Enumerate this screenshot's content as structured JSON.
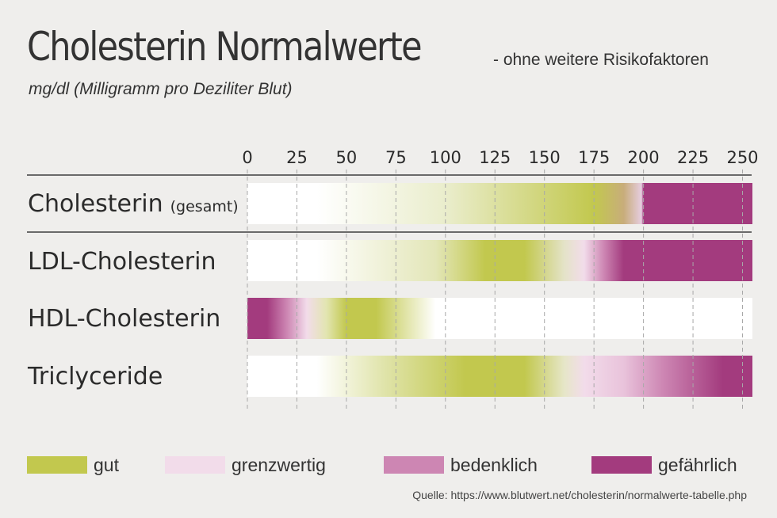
{
  "header": {
    "title": "Cholesterin Normalwerte",
    "subtitle": "- ohne weitere Risikofaktoren",
    "unit": "mg/dl (Milligramm pro Deziliter Blut)"
  },
  "colors": {
    "gut": "#c2c84e",
    "grenzwertig": "#f2dcea",
    "bedenklich": "#cd86b3",
    "gefaehrlich": "#a33b7e",
    "white": "#ffffff"
  },
  "legend": [
    {
      "label": "gut",
      "color": "#c2c84e"
    },
    {
      "label": "grenzwertig",
      "color": "#f2dcea"
    },
    {
      "label": "bedenklich",
      "color": "#cd86b3"
    },
    {
      "label": "gefährlich",
      "color": "#a33b7e"
    }
  ],
  "source": "Quelle: https://www.blutwert.net/cholesterin/normalwerte-tabelle.php",
  "chart_data": {
    "type": "bar",
    "x_ticks": [
      0,
      25,
      50,
      75,
      100,
      125,
      150,
      175,
      200,
      225,
      250
    ],
    "xlim": [
      0,
      255
    ],
    "rows": [
      {
        "label": "Cholesterin",
        "label_suffix": "(gesamt)",
        "stops": [
          [
            0,
            "#ffffff"
          ],
          [
            35,
            "#ffffff"
          ],
          [
            100,
            "#eaedcc"
          ],
          [
            175,
            "#c2c84e"
          ],
          [
            190,
            "#c8ad7a"
          ],
          [
            199,
            "#e6cde0"
          ],
          [
            200,
            "#a33b7e"
          ],
          [
            255,
            "#a33b7e"
          ]
        ]
      },
      {
        "label": "LDL-Cholesterin",
        "label_suffix": "",
        "stops": [
          [
            0,
            "#ffffff"
          ],
          [
            35,
            "#ffffff"
          ],
          [
            95,
            "#e3e6b8"
          ],
          [
            120,
            "#c2c84e"
          ],
          [
            140,
            "#c2c84e"
          ],
          [
            160,
            "#e4e3c8"
          ],
          [
            170,
            "#f2dcea"
          ],
          [
            180,
            "#cd86b3"
          ],
          [
            190,
            "#a33b7e"
          ],
          [
            255,
            "#a33b7e"
          ]
        ]
      },
      {
        "label": "HDL-Cholesterin",
        "label_suffix": "",
        "stops": [
          [
            0,
            "#a33b7e"
          ],
          [
            10,
            "#a33b7e"
          ],
          [
            20,
            "#cd86b3"
          ],
          [
            30,
            "#f2dcea"
          ],
          [
            40,
            "#e2e5b0"
          ],
          [
            50,
            "#c2c84e"
          ],
          [
            65,
            "#c2c84e"
          ],
          [
            95,
            "#ffffff"
          ],
          [
            255,
            "#ffffff"
          ]
        ]
      },
      {
        "label": "Triclyceride",
        "label_suffix": "",
        "stops": [
          [
            0,
            "#ffffff"
          ],
          [
            35,
            "#ffffff"
          ],
          [
            70,
            "#dfe3a8"
          ],
          [
            110,
            "#c2c84e"
          ],
          [
            140,
            "#c2c84e"
          ],
          [
            160,
            "#e6e6c8"
          ],
          [
            170,
            "#f2dcea"
          ],
          [
            190,
            "#e9c3db"
          ],
          [
            210,
            "#cd86b3"
          ],
          [
            240,
            "#a33b7e"
          ],
          [
            255,
            "#a33b7e"
          ]
        ]
      }
    ]
  }
}
